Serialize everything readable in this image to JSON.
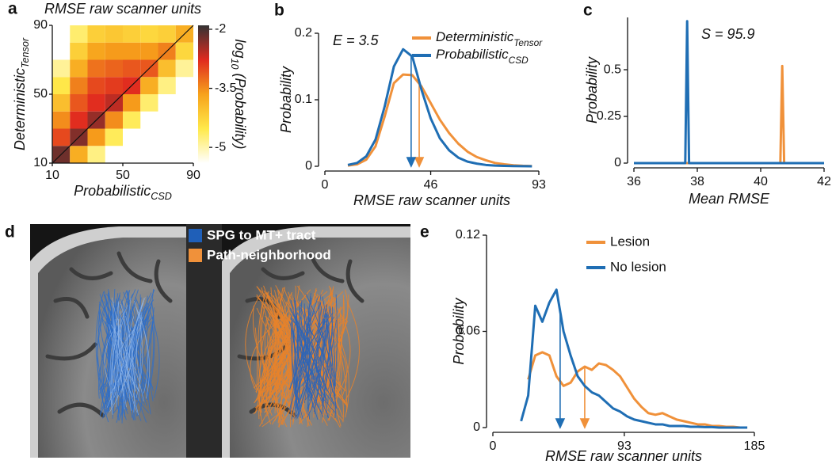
{
  "chart_data": [
    {
      "panel": "a",
      "type": "heatmap",
      "title": "RMSE raw scanner units",
      "xlabel": "Probabilistic",
      "xlabel_sub": "CSD",
      "ylabel": "Deterministic",
      "ylabel_sub": "Tensor",
      "x_bins": [
        10,
        20,
        30,
        40,
        50,
        60,
        70,
        80,
        90
      ],
      "y_bins": [
        10,
        20,
        30,
        40,
        50,
        60,
        70,
        80,
        90
      ],
      "z": [
        [
          -2.2,
          -3.8,
          -4.8,
          null,
          null,
          null,
          null,
          null
        ],
        [
          -3.0,
          -2.3,
          -3.6,
          -4.6,
          null,
          null,
          null,
          null
        ],
        [
          -3.5,
          -2.8,
          -2.4,
          -3.5,
          -4.6,
          null,
          null,
          null
        ],
        [
          -4.0,
          -3.1,
          -2.8,
          -2.6,
          -3.6,
          -4.7,
          null,
          null
        ],
        [
          -4.5,
          -3.4,
          -3.0,
          -2.9,
          -2.8,
          -3.8,
          -4.8,
          null
        ],
        [
          -4.9,
          -3.8,
          -3.3,
          -3.2,
          -3.1,
          -3.1,
          -4.0,
          -4.9
        ],
        [
          null,
          -4.2,
          -3.7,
          -3.6,
          -3.6,
          -3.6,
          -3.4,
          -4.3
        ],
        [
          null,
          -4.7,
          -4.2,
          -4.1,
          -4.2,
          -4.3,
          -4.2,
          -3.8
        ]
      ],
      "xlim": [
        10,
        90
      ],
      "ylim": [
        10,
        90
      ],
      "xticks": [
        10,
        50,
        90
      ],
      "yticks": [
        10,
        50,
        90
      ],
      "colormap": [
        "#ffffff",
        "#ffe94a",
        "#f7a21b",
        "#e02a1f",
        "#333333"
      ],
      "clim": [
        -5.4,
        -1.9
      ],
      "cticks": [
        -2,
        -3.5,
        -5
      ],
      "colorbar_label": "log",
      "colorbar_label_sub": "10",
      "colorbar_label_rest": "(Probability)"
    },
    {
      "panel": "b",
      "type": "line",
      "annotation": "E = 3.5",
      "xlabel": "RMSE raw scanner units",
      "ylabel": "Probability",
      "x": [
        10,
        14,
        18,
        22,
        26,
        30,
        34,
        38,
        42,
        46,
        50,
        54,
        58,
        62,
        66,
        70,
        74,
        78,
        82,
        86,
        90
      ],
      "xlim": [
        0,
        93
      ],
      "xticks": [
        0,
        46,
        93
      ],
      "ylim": [
        0,
        0.2
      ],
      "yticks": [
        0,
        0.1,
        0.2
      ],
      "series": [
        {
          "name": "Deterministic",
          "name_sub": "Tensor",
          "color": "#f0913a",
          "mean": 41,
          "values": [
            0.001,
            0.003,
            0.01,
            0.03,
            0.075,
            0.125,
            0.138,
            0.137,
            0.12,
            0.095,
            0.07,
            0.05,
            0.034,
            0.022,
            0.014,
            0.009,
            0.005,
            0.003,
            0.0015,
            0.0007,
            0.0003
          ]
        },
        {
          "name": "Probabilistic",
          "name_sub": "CSD",
          "color": "#1f6eb4",
          "mean": 37.5,
          "values": [
            0.002,
            0.005,
            0.015,
            0.04,
            0.09,
            0.15,
            0.176,
            0.165,
            0.115,
            0.072,
            0.042,
            0.024,
            0.013,
            0.007,
            0.004,
            0.002,
            0.001,
            0.0006,
            0.0003,
            0.0001,
            0
          ]
        }
      ]
    },
    {
      "panel": "c",
      "type": "line",
      "annotation": "S = 95.9",
      "xlabel": "Mean RMSE",
      "ylabel": "Probability",
      "xlim": [
        36,
        42
      ],
      "xticks": [
        36,
        38,
        40,
        42
      ],
      "ylim": [
        0,
        0.78
      ],
      "yticks": [
        0,
        0.25,
        0.5
      ],
      "series": [
        {
          "color": "#f0913a",
          "x": [
            36,
            40.62,
            40.68,
            40.74,
            42
          ],
          "values": [
            0,
            0,
            0.52,
            0,
            0
          ]
        },
        {
          "color": "#1f6eb4",
          "x": [
            36,
            37.62,
            37.68,
            37.74,
            42
          ],
          "values": [
            0,
            0,
            0.76,
            0,
            0
          ]
        }
      ]
    },
    {
      "panel": "e",
      "type": "line",
      "xlabel": "RMSE raw scanner units",
      "ylabel": "Probability",
      "x": [
        20,
        25,
        30,
        35,
        40,
        45,
        50,
        55,
        60,
        65,
        70,
        75,
        80,
        85,
        90,
        95,
        100,
        105,
        110,
        115,
        120,
        125,
        130,
        135,
        140,
        145,
        150,
        155,
        160,
        165,
        170,
        175,
        180
      ],
      "xlim": [
        0,
        185
      ],
      "xticks": [
        0,
        93,
        185
      ],
      "ylim": [
        0,
        0.12
      ],
      "yticks": [
        0,
        0.06,
        0.12
      ],
      "series": [
        {
          "name": "Lesion",
          "color": "#f0913a",
          "mean": 65,
          "values": [
            null,
            0.03,
            0.045,
            0.047,
            0.045,
            0.032,
            0.026,
            0.028,
            0.035,
            0.038,
            0.036,
            0.04,
            0.039,
            0.036,
            0.032,
            0.025,
            0.018,
            0.013,
            0.009,
            0.008,
            0.009,
            0.007,
            0.005,
            0.004,
            0.003,
            0.002,
            0.002,
            0.001,
            0.001,
            0.0005,
            0.0005,
            0,
            0
          ]
        },
        {
          "name": "No lesion",
          "color": "#1f6eb4",
          "mean": 47.6,
          "values": [
            0.004,
            0.02,
            0.076,
            0.066,
            0.078,
            0.086,
            0.06,
            0.045,
            0.032,
            0.026,
            0.022,
            0.02,
            0.016,
            0.012,
            0.01,
            0.007,
            0.005,
            0.004,
            0.003,
            0.002,
            0.002,
            0.001,
            0.001,
            0.001,
            0.0005,
            0.0005,
            0.0003,
            0.0003,
            0,
            0,
            0,
            0,
            0
          ]
        }
      ]
    }
  ],
  "panel_d": {
    "panel": "d",
    "legend": [
      "SPG to MT+ tract",
      "Path-neighborhood"
    ]
  }
}
